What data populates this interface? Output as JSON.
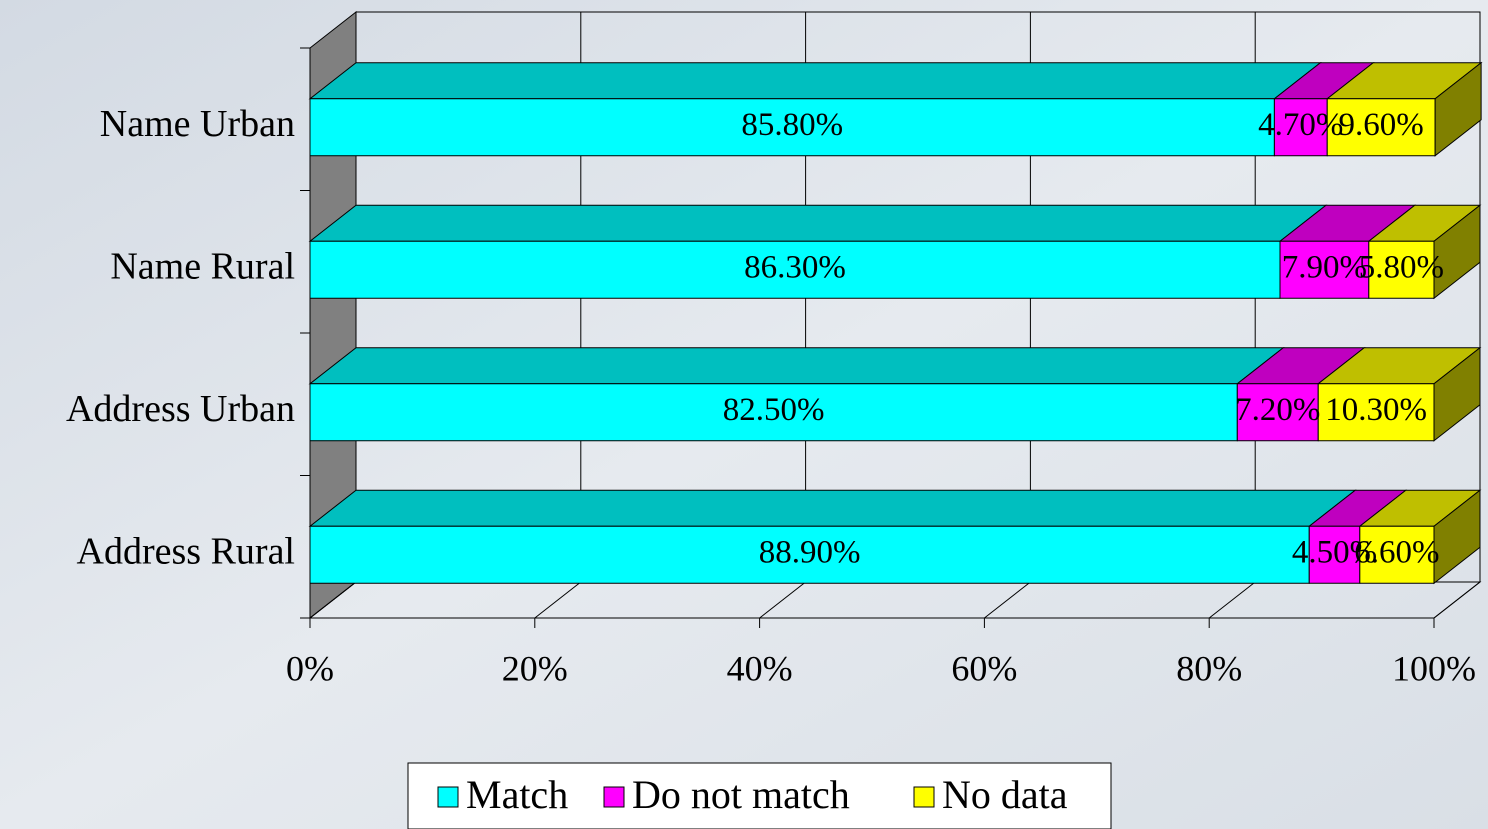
{
  "chart_data": {
    "type": "bar3d_stacked_horizontal",
    "categories": [
      "Name Urban",
      "Name Rural",
      "Address Urban",
      "Address Rural"
    ],
    "series": [
      {
        "name": "Match",
        "color": "#00ffff",
        "values": [
          85.8,
          86.3,
          82.5,
          88.9
        ],
        "value_labels": [
          "85.80%",
          "86.30%",
          "82.50%",
          "88.90%"
        ]
      },
      {
        "name": "Do not match",
        "color": "#ff00ff",
        "values": [
          4.7,
          7.9,
          7.2,
          4.5
        ],
        "value_labels": [
          "4.70%",
          "7.90%",
          "7.20%",
          "4.50%"
        ]
      },
      {
        "name": "No data",
        "color": "#ffff00",
        "values": [
          9.6,
          5.8,
          10.3,
          6.6
        ],
        "value_labels": [
          "9.60%",
          "5.80%",
          "10.30%",
          "6.60%"
        ]
      }
    ],
    "xlim": [
      0,
      100
    ],
    "xticks": [
      {
        "value": 0,
        "label": "0%"
      },
      {
        "value": 20,
        "label": "20%"
      },
      {
        "value": 40,
        "label": "40%"
      },
      {
        "value": 60,
        "label": "60%"
      },
      {
        "value": 80,
        "label": "80%"
      },
      {
        "value": 100,
        "label": "100%"
      }
    ],
    "grid": true,
    "legend": "bottom"
  }
}
